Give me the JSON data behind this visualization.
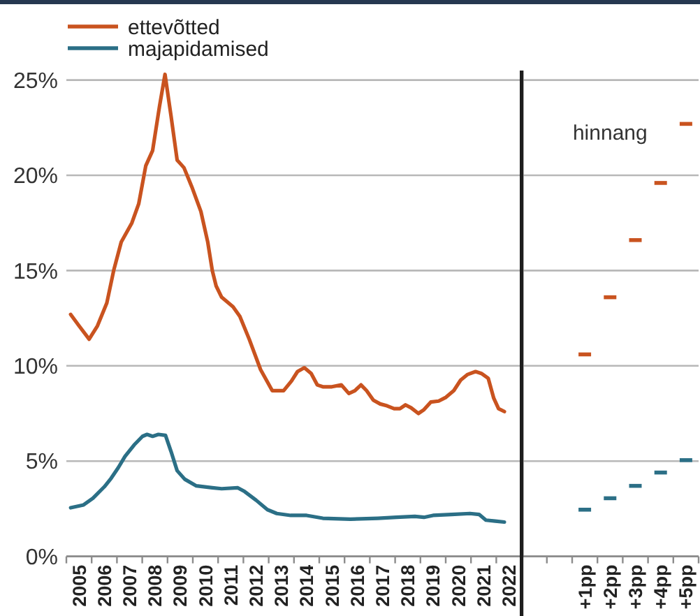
{
  "chart_data": [
    {
      "type": "line",
      "xlim": [
        2005,
        2023
      ],
      "ylim": [
        0,
        25.5
      ],
      "xticks": [
        {
          "value": 2005,
          "label": null
        },
        {
          "value": 2005.5,
          "label": "2005"
        },
        {
          "value": 2006,
          "label": null
        },
        {
          "value": 2006.5,
          "label": "2006"
        },
        {
          "value": 2007,
          "label": null
        },
        {
          "value": 2007.5,
          "label": "2007"
        },
        {
          "value": 2008,
          "label": null
        },
        {
          "value": 2008.5,
          "label": "2008"
        },
        {
          "value": 2009,
          "label": null
        },
        {
          "value": 2009.5,
          "label": "2009"
        },
        {
          "value": 2010,
          "label": null
        },
        {
          "value": 2010.5,
          "label": "2010"
        },
        {
          "value": 2011,
          "label": null
        },
        {
          "value": 2011.5,
          "label": "2011"
        },
        {
          "value": 2012,
          "label": null
        },
        {
          "value": 2012.5,
          "label": "2012"
        },
        {
          "value": 2013,
          "label": null
        },
        {
          "value": 2013.5,
          "label": "2013"
        },
        {
          "value": 2014,
          "label": null
        },
        {
          "value": 2014.5,
          "label": "2014"
        },
        {
          "value": 2015,
          "label": null
        },
        {
          "value": 2015.5,
          "label": "2015"
        },
        {
          "value": 2016,
          "label": null
        },
        {
          "value": 2016.5,
          "label": "2016"
        },
        {
          "value": 2017,
          "label": null
        },
        {
          "value": 2017.5,
          "label": "2017"
        },
        {
          "value": 2018,
          "label": null
        },
        {
          "value": 2018.5,
          "label": "2018"
        },
        {
          "value": 2019,
          "label": null
        },
        {
          "value": 2019.5,
          "label": "2019"
        },
        {
          "value": 2020,
          "label": null
        },
        {
          "value": 2020.5,
          "label": "2020"
        },
        {
          "value": 2021,
          "label": null
        },
        {
          "value": 2021.5,
          "label": "2021"
        },
        {
          "value": 2022,
          "label": null
        },
        {
          "value": 2022.5,
          "label": "2022"
        }
      ],
      "yticks": [
        {
          "value": 0,
          "label": "0%"
        },
        {
          "value": 5,
          "label": "5%"
        },
        {
          "value": 10,
          "label": "10%"
        },
        {
          "value": 15,
          "label": "15%"
        },
        {
          "value": 20,
          "label": "20%"
        },
        {
          "value": 25,
          "label": "25%"
        }
      ],
      "grid": "y",
      "legend": "top left",
      "series": [
        {
          "name": "ettevõtted",
          "color": "#c9531f",
          "x": [
            2005.17,
            2005.5,
            2005.9,
            2006.23,
            2006.6,
            2006.87,
            2007.17,
            2007.59,
            2007.86,
            2008.14,
            2008.41,
            2008.68,
            2008.9,
            2009.14,
            2009.38,
            2009.65,
            2009.96,
            2010.32,
            2010.59,
            2010.77,
            2010.92,
            2011.14,
            2011.59,
            2011.86,
            2012.23,
            2012.68,
            2013.14,
            2013.59,
            2013.9,
            2014.14,
            2014.41,
            2014.68,
            2014.92,
            2015.14,
            2015.5,
            2015.87,
            2016.17,
            2016.41,
            2016.65,
            2016.87,
            2017.14,
            2017.41,
            2017.68,
            2017.96,
            2018.19,
            2018.41,
            2018.63,
            2018.92,
            2019.14,
            2019.41,
            2019.72,
            2020.01,
            2020.32,
            2020.59,
            2020.87,
            2021.18,
            2021.41,
            2021.68,
            2021.9,
            2022.09,
            2022.32
          ],
          "values": [
            12.7,
            12.1,
            11.4,
            12.1,
            13.3,
            15.0,
            16.5,
            17.5,
            18.5,
            20.5,
            21.3,
            23.6,
            25.3,
            23.1,
            20.8,
            20.4,
            19.4,
            18.1,
            16.5,
            15.0,
            14.2,
            13.6,
            13.1,
            12.6,
            11.4,
            9.8,
            8.7,
            8.7,
            9.2,
            9.7,
            9.9,
            9.6,
            9.0,
            8.9,
            8.9,
            9.0,
            8.55,
            8.7,
            9.0,
            8.7,
            8.2,
            8.0,
            7.9,
            7.75,
            7.75,
            7.95,
            7.8,
            7.5,
            7.7,
            8.1,
            8.15,
            8.35,
            8.7,
            9.25,
            9.55,
            9.7,
            9.6,
            9.35,
            8.3,
            7.75,
            7.6
          ]
        },
        {
          "name": "majapidamised",
          "color": "#2b6f86",
          "x": [
            2005.17,
            2005.68,
            2006.05,
            2006.5,
            2006.77,
            2007.05,
            2007.32,
            2007.68,
            2008.01,
            2008.19,
            2008.41,
            2008.64,
            2008.92,
            2009.14,
            2009.38,
            2009.68,
            2010.14,
            2010.77,
            2011.14,
            2011.78,
            2012.05,
            2012.5,
            2012.95,
            2013.32,
            2013.87,
            2014.5,
            2015.14,
            2016.23,
            2017.32,
            2018.05,
            2018.78,
            2019.14,
            2019.5,
            2020.23,
            2020.96,
            2021.32,
            2021.59,
            2021.96,
            2022.32
          ],
          "values": [
            2.55,
            2.7,
            3.05,
            3.65,
            4.1,
            4.65,
            5.25,
            5.85,
            6.3,
            6.4,
            6.3,
            6.4,
            6.35,
            5.5,
            4.5,
            4.05,
            3.7,
            3.6,
            3.55,
            3.6,
            3.4,
            2.95,
            2.45,
            2.25,
            2.15,
            2.15,
            2.0,
            1.95,
            2.0,
            2.05,
            2.1,
            2.05,
            2.15,
            2.2,
            2.25,
            2.2,
            1.9,
            1.85,
            1.8
          ]
        }
      ]
    },
    {
      "type": "scatter",
      "categories": [
        null,
        null,
        "+1pp",
        "+2pp",
        "+3pp",
        "+4pp",
        "+5pp"
      ],
      "ylim": [
        0,
        25.5
      ],
      "yticks": [
        0,
        5,
        10,
        15,
        20,
        25
      ],
      "grid": "y",
      "tick_labels": "x",
      "marker": "square",
      "annotations": [
        "hinnang"
      ],
      "series": [
        {
          "color": "#c9531f",
          "values": [
            null,
            null,
            10.6,
            13.6,
            16.6,
            19.6,
            22.7
          ]
        },
        {
          "color": "#2b6f86",
          "values": [
            null,
            null,
            2.45,
            3.05,
            3.7,
            4.4,
            5.05
          ]
        }
      ]
    }
  ]
}
